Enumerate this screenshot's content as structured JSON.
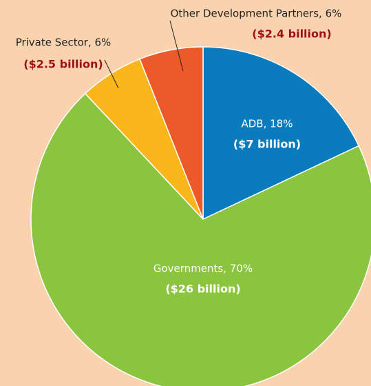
{
  "chart_data": {
    "type": "pie",
    "categories": [
      "ADB",
      "Governments",
      "Private Sector",
      "Other Development Partners"
    ],
    "values": [
      18,
      70,
      6,
      6
    ],
    "value_labels": [
      "ADB, 18%",
      "Governments, 70%",
      "Private Sector, 6%",
      "Other Development Partners, 6%"
    ],
    "amount_labels": [
      "($7 billion)",
      "($26 billion)",
      "($2.5 billion)",
      "($2.4 billion)"
    ],
    "colors": [
      "#0a7bbd",
      "#8bc43f",
      "#fbb61b",
      "#ec5a2b"
    ]
  }
}
